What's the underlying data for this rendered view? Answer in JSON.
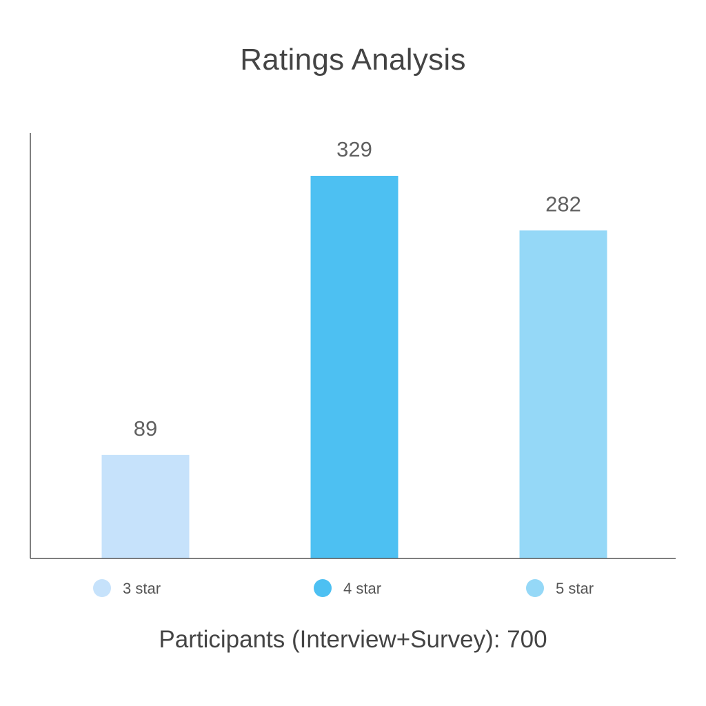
{
  "chart_data": {
    "type": "bar",
    "title": "Ratings Analysis",
    "categories": [
      "3 star",
      "4 star",
      "5 star"
    ],
    "values": [
      89,
      329,
      282
    ],
    "colors": [
      "#c6e2fb",
      "#4dc0f2",
      "#95d8f7"
    ],
    "ylim": [
      0,
      400
    ],
    "grid": false,
    "legend": "bottom",
    "footer": "Participants (Interview+Survey): 700"
  }
}
